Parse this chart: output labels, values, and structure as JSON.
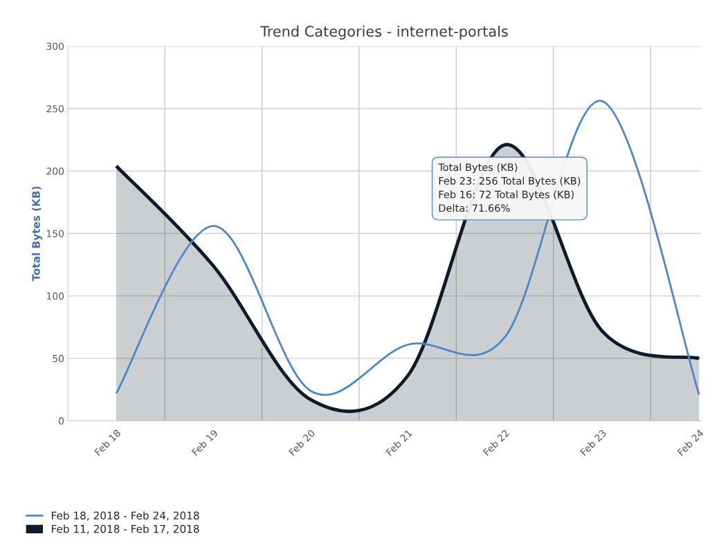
{
  "chart_data": {
    "type": "area",
    "title": "Trend Categories - internet-portals",
    "ylabel": "Total Bytes (KB)",
    "categories": [
      "Feb 18",
      "Feb 19",
      "Feb 20",
      "Feb 21",
      "Feb 22",
      "Feb 23",
      "Feb 24"
    ],
    "series": [
      {
        "name": "Feb 18, 2018 - Feb 24, 2018",
        "type": "line",
        "color": "#4a86c8",
        "values": [
          22,
          156,
          24,
          61,
          67,
          256,
          21
        ]
      },
      {
        "name": "Feb 11, 2018 - Feb 17, 2018",
        "color": "#0d1b2a",
        "values": [
          204,
          124,
          17,
          36,
          221,
          72,
          50
        ]
      }
    ],
    "ylim": [
      0,
      300
    ],
    "yticks": [
      0,
      50,
      100,
      150,
      200,
      250,
      300
    ],
    "grid": true,
    "legend": "bottom left",
    "marker": "none",
    "annotations": [
      "Total Bytes (KB)\nFeb 23: 256 Total Bytes (KB)\nFeb 16: 72 Total Bytes (KB)\nDelta: 71.66%"
    ]
  }
}
